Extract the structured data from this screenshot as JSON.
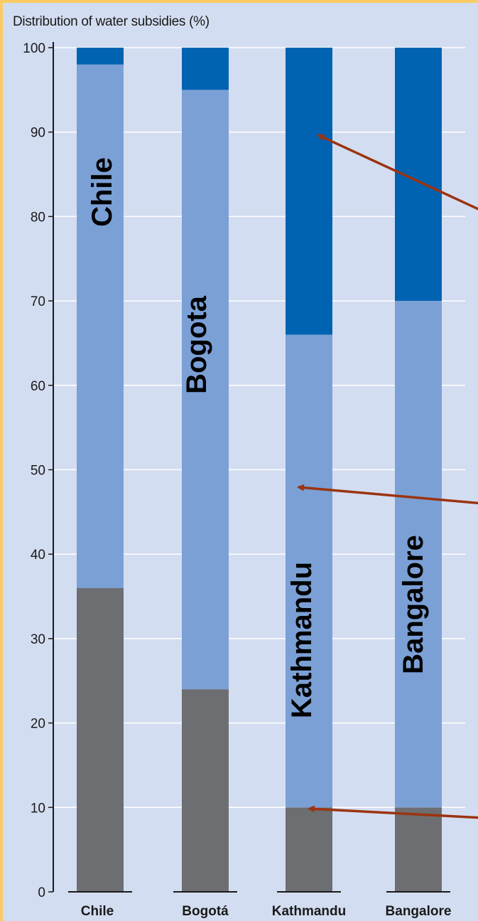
{
  "chart_data": {
    "type": "bar",
    "stacked": true,
    "title": "Distribution of water subsidies (%)",
    "xlabel": "",
    "ylabel": "",
    "ylim": [
      0,
      100
    ],
    "yticks": [
      0,
      10,
      20,
      30,
      40,
      50,
      60,
      70,
      80,
      90,
      100
    ],
    "grid": true,
    "categories": [
      "Chile",
      "Bogotá",
      "Kathmandu",
      "Bangalore"
    ],
    "bar_labels": [
      "Chile",
      "Bogota",
      "Kathmandu",
      "Bangalore"
    ],
    "series": [
      {
        "values": [
          36,
          24,
          10,
          10
        ],
        "color": "#6d6e71"
      },
      {
        "values": [
          62,
          71,
          56,
          60
        ],
        "color": "#7ba0d6"
      },
      {
        "values": [
          2,
          5,
          34,
          30
        ],
        "color": "#0063b1"
      }
    ],
    "annotation_color": "#9b3410"
  }
}
